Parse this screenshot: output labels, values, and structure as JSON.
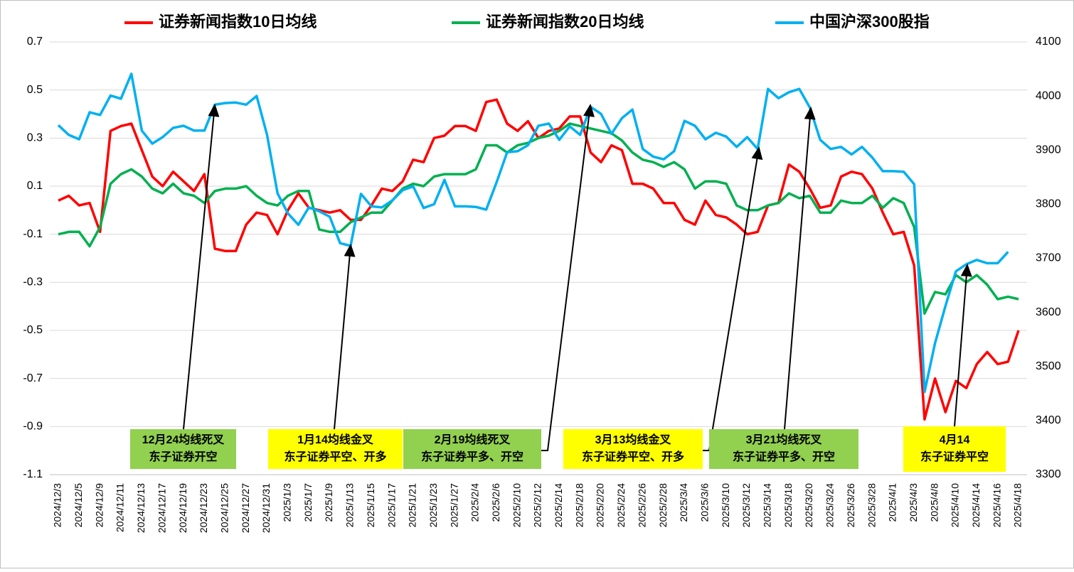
{
  "chart_data": {
    "type": "line",
    "categories": [
      "2024/12/3",
      null,
      "2024/12/5",
      null,
      "2024/12/9",
      null,
      "2024/12/11",
      null,
      "2024/12/13",
      null,
      "2024/12/17",
      null,
      "2024/12/19",
      null,
      "2024/12/23",
      null,
      "2024/12/25",
      null,
      "2024/12/27",
      null,
      "2024/12/31",
      null,
      "2025/1/3",
      null,
      "2025/1/7",
      null,
      "2025/1/9",
      null,
      "2025/1/13",
      null,
      "2025/1/15",
      null,
      "2025/1/17",
      null,
      "2025/1/21",
      null,
      "2025/1/23",
      null,
      "2025/1/27",
      null,
      "2025/2/4",
      null,
      "2025/2/6",
      null,
      "2025/2/10",
      null,
      "2025/2/12",
      null,
      "2025/2/14",
      null,
      "2025/2/18",
      null,
      "2025/2/20",
      null,
      "2025/2/24",
      null,
      "2025/2/26",
      null,
      "2025/2/28",
      null,
      "2025/3/4",
      null,
      "2025/3/6",
      null,
      "2025/3/10",
      null,
      "2025/3/12",
      null,
      "2025/3/14",
      null,
      "2025/3/18",
      null,
      "2025/3/20",
      null,
      "2025/3/24",
      null,
      "2025/3/26",
      null,
      "2025/3/28",
      null,
      "2025/4/1",
      null,
      "2025/4/3",
      null,
      "2025/4/8",
      null,
      "2025/4/10",
      null,
      "2025/4/14",
      null,
      "2025/4/16",
      null,
      "2025/4/18"
    ],
    "series": [
      {
        "name": "证券新闻指数10日均线",
        "color": "#ff0000",
        "values": [
          0.04,
          0.06,
          0.02,
          0.03,
          -0.09,
          0.33,
          0.35,
          0.36,
          0.25,
          0.14,
          0.1,
          0.16,
          0.12,
          0.08,
          0.15,
          -0.16,
          -0.17,
          -0.17,
          -0.06,
          -0.01,
          -0.02,
          -0.1,
          0.0,
          0.07,
          0.01,
          0.0,
          -0.01,
          0.0,
          -0.04,
          -0.04,
          0.02,
          0.09,
          0.08,
          0.12,
          0.21,
          0.2,
          0.3,
          0.31,
          0.35,
          0.35,
          0.33,
          0.45,
          0.46,
          0.36,
          0.33,
          0.37,
          0.3,
          0.33,
          0.34,
          0.39,
          0.39,
          0.24,
          0.2,
          0.27,
          0.25,
          0.11,
          0.11,
          0.09,
          0.03,
          0.03,
          -0.04,
          -0.06,
          0.04,
          -0.02,
          -0.03,
          -0.06,
          -0.1,
          -0.09,
          0.02,
          0.03,
          0.19,
          0.16,
          0.09,
          0.01,
          0.02,
          0.14,
          0.16,
          0.15,
          0.09,
          -0.01,
          -0.1,
          -0.09,
          -0.23,
          -0.87,
          -0.7,
          -0.84,
          -0.71,
          -0.74,
          -0.64,
          -0.59,
          -0.64,
          -0.63,
          -0.5
        ]
      },
      {
        "name": "证券新闻指数20日均线",
        "color": "#00b050",
        "values": [
          -0.1,
          -0.09,
          -0.09,
          -0.15,
          -0.07,
          0.11,
          0.15,
          0.17,
          0.14,
          0.09,
          0.07,
          0.11,
          0.07,
          0.06,
          0.03,
          0.08,
          0.09,
          0.09,
          0.1,
          0.06,
          0.03,
          0.02,
          0.06,
          0.08,
          0.08,
          -0.08,
          -0.09,
          -0.09,
          -0.05,
          -0.03,
          -0.01,
          -0.01,
          0.04,
          0.09,
          0.11,
          0.1,
          0.14,
          0.15,
          0.15,
          0.15,
          0.17,
          0.27,
          0.27,
          0.24,
          0.27,
          0.28,
          0.3,
          0.31,
          0.33,
          0.36,
          0.35,
          0.34,
          0.33,
          0.32,
          0.29,
          0.24,
          0.21,
          0.2,
          0.18,
          0.2,
          0.17,
          0.09,
          0.12,
          0.12,
          0.11,
          0.02,
          0.0,
          0.0,
          0.02,
          0.03,
          0.07,
          0.05,
          0.06,
          -0.01,
          -0.01,
          0.04,
          0.03,
          0.03,
          0.06,
          0.01,
          0.05,
          0.03,
          -0.07,
          -0.43,
          -0.34,
          -0.35,
          -0.27,
          -0.3,
          -0.27,
          -0.31,
          -0.37,
          -0.36,
          -0.37
        ]
      },
      {
        "name": "中国沪深300股指",
        "color": "#00b0f0",
        "axis": "y2",
        "values": [
          3946,
          3928,
          3920,
          3970,
          3965,
          4001,
          3995,
          4041,
          3936,
          3912,
          3924,
          3941,
          3945,
          3936,
          3936,
          3984,
          3987,
          3988,
          3984,
          4000,
          3928,
          3820,
          3783,
          3762,
          3794,
          3787,
          3777,
          3728,
          3723,
          3819,
          3796,
          3794,
          3807,
          3826,
          3833,
          3793,
          3800,
          3845,
          3796,
          3796,
          3795,
          3790,
          3841,
          3896,
          3898,
          3909,
          3945,
          3949,
          3919,
          3944,
          3928,
          3980,
          3967,
          3930,
          3959,
          3975,
          3902,
          3888,
          3883,
          3898,
          3954,
          3945,
          3920,
          3932,
          3925,
          3906,
          3924,
          3902,
          4013,
          3996,
          4007,
          4013,
          3979,
          3919,
          3902,
          3906,
          3892,
          3906,
          3886,
          3861,
          3861,
          3860,
          3837,
          3453,
          3543,
          3612,
          3676,
          3689,
          3697,
          3691,
          3691,
          3712,
          null
        ]
      }
    ],
    "ylim": [
      -1.1,
      0.7
    ],
    "yticks": [
      0.7,
      0.5,
      0.3,
      0.1,
      -0.1,
      -0.3,
      -0.5,
      -0.7,
      -0.9,
      -1.1
    ],
    "y2lim": [
      3300,
      4100
    ],
    "y2ticks": [
      4100,
      4000,
      3900,
      3800,
      3700,
      3600,
      3500,
      3400,
      3300
    ],
    "grid": true,
    "legend": "top",
    "annotations": [
      {
        "lines": [
          "12月24均线死叉",
          "东子证券开空"
        ],
        "color": "#92d050"
      },
      {
        "lines": [
          "1月14均线金叉",
          "东子证券平空、开多"
        ],
        "color": "#ffff00"
      },
      {
        "lines": [
          "2月19均线死叉",
          "东子证券平多、开空"
        ],
        "color": "#92d050"
      },
      {
        "lines": [
          "3月13均线金叉",
          "东子证券平空、开多"
        ],
        "color": "#ffff00"
      },
      {
        "lines": [
          "3月21均线死叉",
          "东子证券平多、开空"
        ],
        "color": "#92d050"
      },
      {
        "lines": [
          "4月14",
          "东子证券平空"
        ],
        "color": "#ffff00"
      }
    ]
  }
}
